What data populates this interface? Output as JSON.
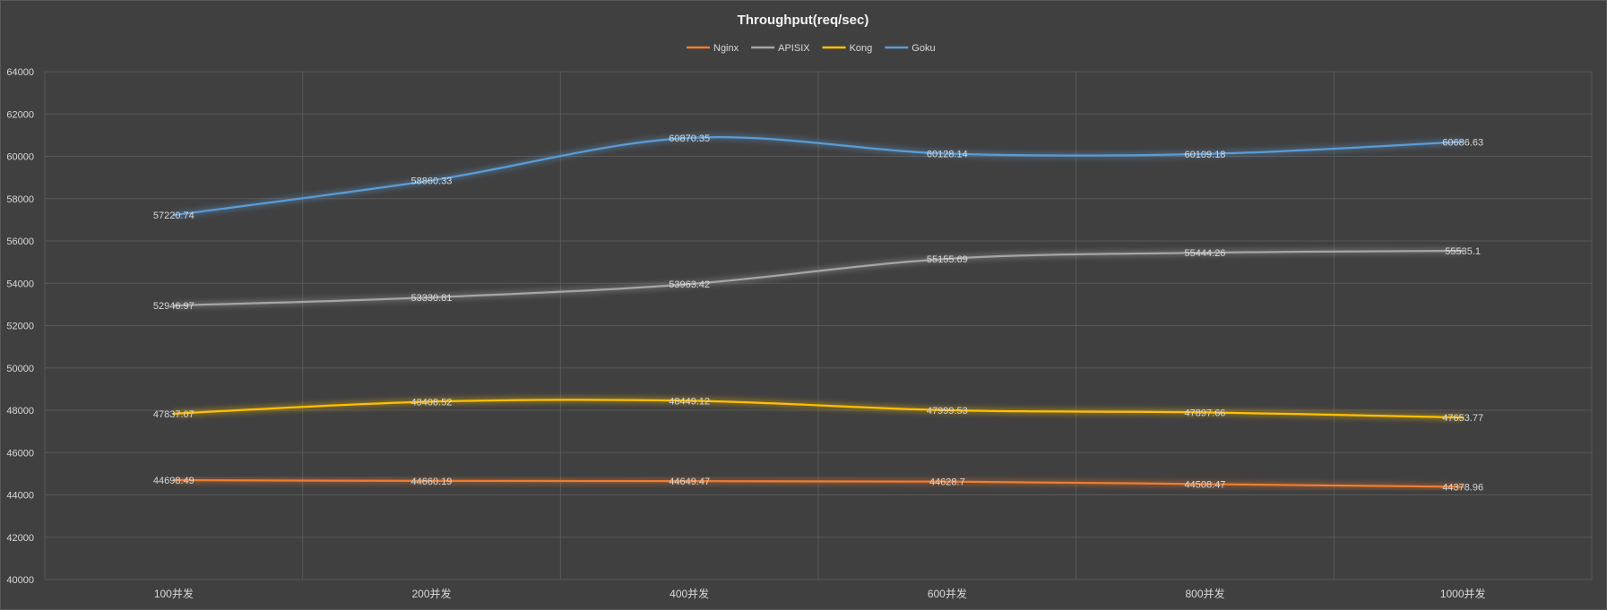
{
  "chart_data": {
    "type": "line",
    "title": "Throughput(req/sec)",
    "xlabel": "",
    "ylabel": "",
    "categories": [
      "100并发",
      "200并发",
      "400并发",
      "600并发",
      "800并发",
      "1000并发"
    ],
    "ylim": [
      40000,
      64000
    ],
    "yticks": [
      "40000",
      "42000",
      "44000",
      "46000",
      "48000",
      "50000",
      "52000",
      "54000",
      "56000",
      "58000",
      "60000",
      "62000",
      "64000"
    ],
    "grid": true,
    "legend_position": "top",
    "series": [
      {
        "name": "Nginx",
        "color": "#ED7D31",
        "values": [
          44698.49,
          44660.19,
          44649.47,
          44628.7,
          44508.47,
          44378.96
        ],
        "labels": [
          "44698.49",
          "44660.19",
          "44649.47",
          "44628.7",
          "44508.47",
          "44378.96"
        ]
      },
      {
        "name": "APISIX",
        "color": "#A5A5A5",
        "values": [
          52946.97,
          53330.81,
          53963.42,
          55155.69,
          55444.26,
          55535.1
        ],
        "labels": [
          "52946.97",
          "53330.81",
          "53963.42",
          "55155.69",
          "55444.26",
          "55535.1"
        ]
      },
      {
        "name": "Kong",
        "color": "#FFC000",
        "values": [
          47837.07,
          48408.52,
          48449.12,
          47999.53,
          47897.66,
          47653.77
        ],
        "labels": [
          "47837.07",
          "48408.52",
          "48449.12",
          "47999.53",
          "47897.66",
          "47653.77"
        ]
      },
      {
        "name": "Goku",
        "color": "#5B9BD5",
        "values": [
          57220.74,
          58860.33,
          60870.35,
          60128.14,
          60109.18,
          60686.63
        ],
        "labels": [
          "57220.74",
          "58860.33",
          "60870.35",
          "60128.14",
          "60109.18",
          "60686.63"
        ]
      }
    ]
  }
}
